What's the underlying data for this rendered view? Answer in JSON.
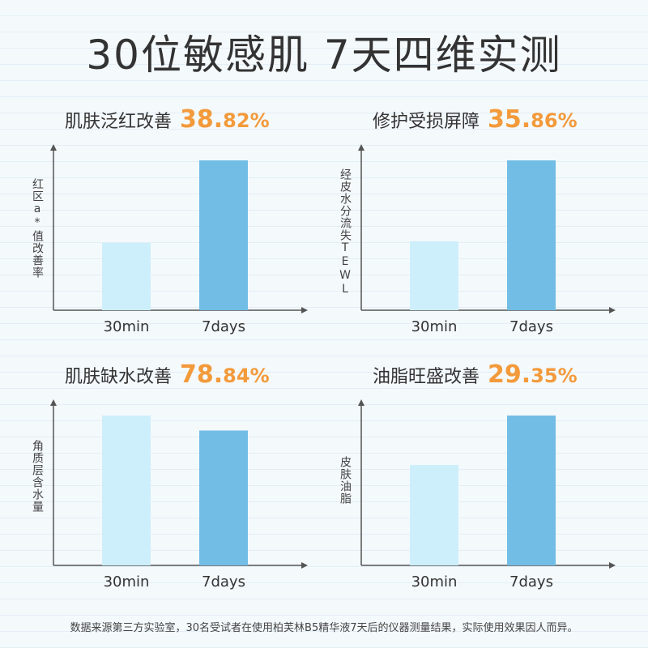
{
  "title": "30位敏感肌 7天四维实测",
  "footnote": "数据来源第三方实验室，30名受试者在使用柏芙林B5精华液7天后的仪器测量结果，实际使用效果因人而异。",
  "colors": {
    "bar_30min": "#cdeffb",
    "bar_7days": "#72bde6",
    "accent": "#f39a3b",
    "axis": "#555555"
  },
  "chart_data": [
    {
      "type": "bar",
      "title": "肌肤泛红改善",
      "improvement_int": "38.",
      "improvement_dec": "82%",
      "ylabel": "红区a*值改善率",
      "categories": [
        "30min",
        "7days"
      ],
      "values": [
        45,
        100
      ],
      "ylim": [
        0,
        100
      ],
      "grid": false
    },
    {
      "type": "bar",
      "title": "修护受损屏障",
      "improvement_int": "35.",
      "improvement_dec": "86%",
      "ylabel": "经皮水分流失TEWL",
      "categories": [
        "30min",
        "7days"
      ],
      "values": [
        46,
        100
      ],
      "ylim": [
        0,
        100
      ],
      "grid": false
    },
    {
      "type": "bar",
      "title": "肌肤缺水改善",
      "improvement_int": "78.",
      "improvement_dec": "84%",
      "ylabel": "角质层含水量",
      "categories": [
        "30min",
        "7days"
      ],
      "values": [
        100,
        90
      ],
      "ylim": [
        0,
        100
      ],
      "grid": false
    },
    {
      "type": "bar",
      "title": "油脂旺盛改善",
      "improvement_int": "29.",
      "improvement_dec": "35%",
      "ylabel": "皮肤油脂",
      "categories": [
        "30min",
        "7days"
      ],
      "values": [
        67,
        100
      ],
      "ylim": [
        0,
        100
      ],
      "grid": false
    }
  ]
}
